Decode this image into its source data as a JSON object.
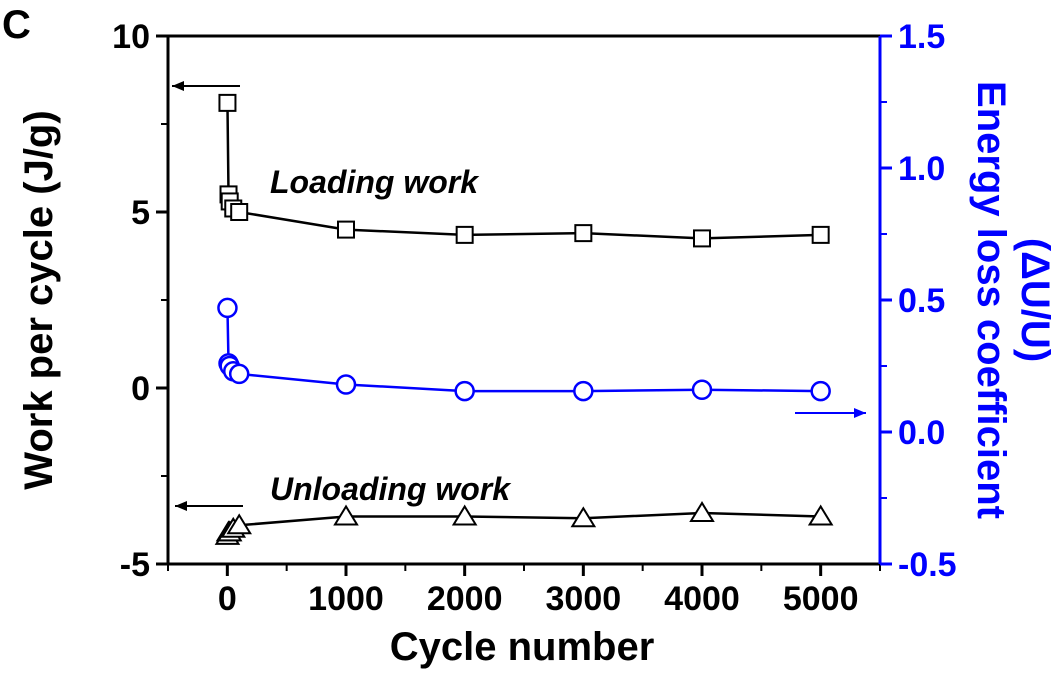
{
  "panel_label": "C",
  "chart_data": {
    "type": "line",
    "xlabel": "Cycle number",
    "ylabel_left": "Work per cycle (J/g)",
    "ylabel_right_line1": "Energy loss coefficient",
    "ylabel_right_line2": "(ΔU/U)",
    "xlim": [
      -500,
      5500
    ],
    "ylim_left": [
      -5,
      10
    ],
    "ylim_right": [
      -0.5,
      1.5
    ],
    "x_ticks": [
      0,
      1000,
      2000,
      3000,
      4000,
      5000
    ],
    "x_tick_labels": [
      "0",
      "1000",
      "2000",
      "3000",
      "4000",
      "5000"
    ],
    "y_left_ticks": [
      -5,
      0,
      5,
      10
    ],
    "y_left_tick_labels": [
      "-5",
      "0",
      "5",
      "10"
    ],
    "y_right_ticks": [
      -0.5,
      0.0,
      0.5,
      1.0,
      1.5
    ],
    "y_right_tick_labels": [
      "-0.5",
      "0.0",
      "0.5",
      "1.0",
      "1.5"
    ],
    "annotations": [
      "Loading work",
      "Unloading work"
    ],
    "colors": {
      "left_axis": "#000000",
      "right_axis": "#0000ff"
    },
    "series": [
      {
        "marker": "square",
        "axis": "left",
        "color": "#000000",
        "x": [
          1,
          10,
          20,
          50,
          100,
          1000,
          2000,
          3000,
          4000,
          5000
        ],
        "y": [
          8.1,
          5.5,
          5.3,
          5.1,
          5.0,
          4.5,
          4.35,
          4.4,
          4.25,
          4.35
        ]
      },
      {
        "marker": "triangle",
        "axis": "left",
        "color": "#000000",
        "x": [
          1,
          10,
          20,
          50,
          100,
          1000,
          2000,
          3000,
          4000,
          5000
        ],
        "y": [
          -4.2,
          -4.1,
          -4.1,
          -4.0,
          -3.9,
          -3.65,
          -3.65,
          -3.7,
          -3.55,
          -3.65
        ]
      },
      {
        "marker": "circle",
        "axis": "right",
        "color": "#0000ff",
        "x": [
          1,
          10,
          20,
          50,
          100,
          1000,
          2000,
          3000,
          4000,
          5000
        ],
        "y": [
          0.47,
          0.26,
          0.25,
          0.23,
          0.22,
          0.18,
          0.155,
          0.155,
          0.16,
          0.155
        ]
      }
    ]
  }
}
